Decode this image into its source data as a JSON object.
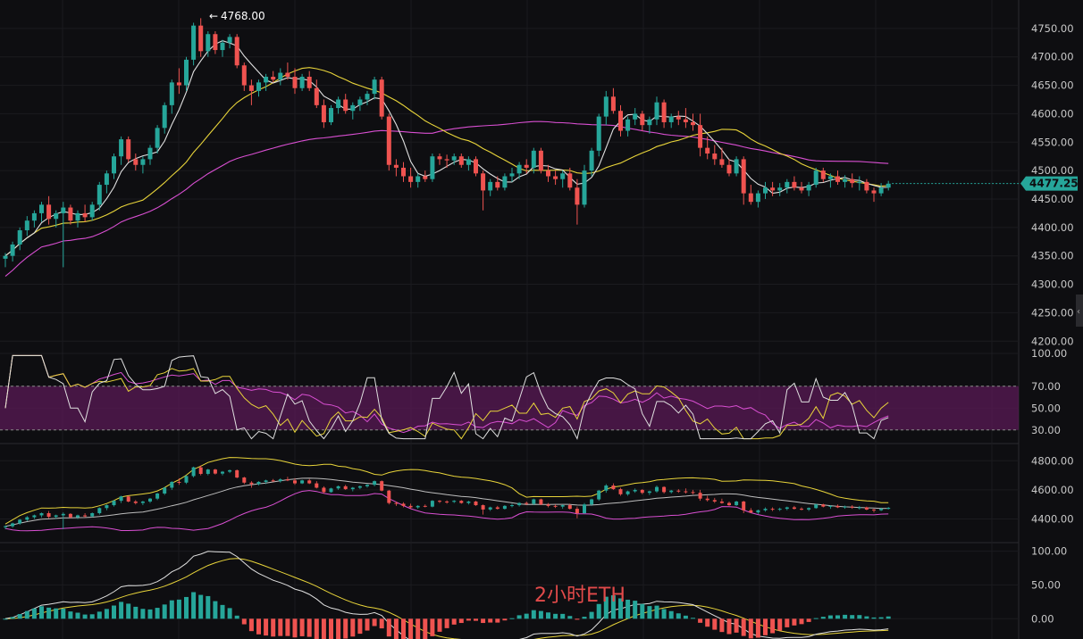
{
  "watermark": "2小时ETH",
  "colors": {
    "background": "#0e0e11",
    "up": "#26a69a",
    "down": "#ef5350",
    "ma_fast": "#e0e0e0",
    "ma_mid": "#e8d43a",
    "ma_slow": "#d94fd2",
    "rsi_band": "#5a1a55",
    "price_tag": "#26a69a"
  },
  "chart_data": [
    {
      "type": "candlestick",
      "panel": "price",
      "ylim": [
        4180,
        4800
      ],
      "y_ticks": [
        "4750.00",
        "4700.00",
        "4650.00",
        "4600.00",
        "4550.00",
        "4500.00",
        "4450.00",
        "4400.00",
        "4350.00",
        "4300.00",
        "4250.00",
        "4200.00"
      ],
      "current_price": "4477.25",
      "peak_label": "4768.00",
      "candles": [
        [
          4345,
          4355,
          4330,
          4350
        ],
        [
          4350,
          4375,
          4340,
          4370
        ],
        [
          4370,
          4400,
          4360,
          4395
        ],
        [
          4395,
          4420,
          4385,
          4412
        ],
        [
          4412,
          4430,
          4400,
          4425
        ],
        [
          4425,
          4445,
          4410,
          4440
        ],
        [
          4440,
          4455,
          4405,
          4415
        ],
        [
          4415,
          4430,
          4400,
          4425
        ],
        [
          4425,
          4445,
          4330,
          4435
        ],
        [
          4435,
          4440,
          4405,
          4412
        ],
        [
          4412,
          4430,
          4400,
          4425
        ],
        [
          4425,
          4440,
          4410,
          4418
        ],
        [
          4418,
          4445,
          4412,
          4440
        ],
        [
          4440,
          4480,
          4430,
          4475
        ],
        [
          4475,
          4500,
          4460,
          4495
        ],
        [
          4495,
          4530,
          4485,
          4525
        ],
        [
          4525,
          4560,
          4510,
          4555
        ],
        [
          4555,
          4560,
          4515,
          4520
        ],
        [
          4520,
          4530,
          4500,
          4510
        ],
        [
          4510,
          4525,
          4495,
          4520
        ],
        [
          4520,
          4545,
          4510,
          4540
        ],
        [
          4540,
          4580,
          4530,
          4575
        ],
        [
          4575,
          4620,
          4565,
          4615
        ],
        [
          4615,
          4660,
          4600,
          4655
        ],
        [
          4655,
          4680,
          4635,
          4650
        ],
        [
          4650,
          4700,
          4640,
          4695
        ],
        [
          4695,
          4760,
          4685,
          4755
        ],
        [
          4755,
          4768,
          4700,
          4710
        ],
        [
          4710,
          4745,
          4700,
          4740
        ],
        [
          4740,
          4745,
          4705,
          4712
        ],
        [
          4712,
          4730,
          4700,
          4725
        ],
        [
          4725,
          4740,
          4715,
          4735
        ],
        [
          4735,
          4740,
          4680,
          4685
        ],
        [
          4685,
          4690,
          4640,
          4650
        ],
        [
          4650,
          4660,
          4615,
          4640
        ],
        [
          4640,
          4660,
          4630,
          4655
        ],
        [
          4655,
          4670,
          4640,
          4665
        ],
        [
          4665,
          4675,
          4655,
          4660
        ],
        [
          4660,
          4680,
          4650,
          4672
        ],
        [
          4672,
          4690,
          4660,
          4665
        ],
        [
          4665,
          4680,
          4635,
          4645
        ],
        [
          4645,
          4670,
          4640,
          4665
        ],
        [
          4665,
          4675,
          4640,
          4645
        ],
        [
          4645,
          4660,
          4610,
          4615
        ],
        [
          4615,
          4625,
          4575,
          4585
        ],
        [
          4585,
          4615,
          4580,
          4610
        ],
        [
          4610,
          4630,
          4600,
          4625
        ],
        [
          4625,
          4635,
          4600,
          4605
        ],
        [
          4605,
          4620,
          4590,
          4615
        ],
        [
          4615,
          4630,
          4605,
          4625
        ],
        [
          4625,
          4640,
          4615,
          4635
        ],
        [
          4635,
          4665,
          4625,
          4660
        ],
        [
          4660,
          4665,
          4590,
          4595
        ],
        [
          4595,
          4600,
          4500,
          4510
        ],
        [
          4510,
          4520,
          4490,
          4505
        ],
        [
          4505,
          4515,
          4480,
          4490
        ],
        [
          4490,
          4505,
          4470,
          4480
        ],
        [
          4480,
          4495,
          4470,
          4490
        ],
        [
          4490,
          4500,
          4480,
          4485
        ],
        [
          4485,
          4530,
          4480,
          4525
        ],
        [
          4525,
          4530,
          4510,
          4520
        ],
        [
          4520,
          4528,
          4505,
          4518
        ],
        [
          4518,
          4530,
          4510,
          4525
        ],
        [
          4525,
          4530,
          4505,
          4510
        ],
        [
          4510,
          4525,
          4500,
          4520
        ],
        [
          4520,
          4525,
          4490,
          4495
        ],
        [
          4495,
          4500,
          4430,
          4465
        ],
        [
          4465,
          4485,
          4455,
          4480
        ],
        [
          4480,
          4490,
          4465,
          4470
        ],
        [
          4470,
          4495,
          4465,
          4490
        ],
        [
          4490,
          4505,
          4480,
          4495
        ],
        [
          4495,
          4515,
          4485,
          4510
        ],
        [
          4510,
          4520,
          4495,
          4505
        ],
        [
          4505,
          4540,
          4495,
          4535
        ],
        [
          4535,
          4540,
          4495,
          4500
        ],
        [
          4500,
          4510,
          4480,
          4490
        ],
        [
          4490,
          4500,
          4475,
          4485
        ],
        [
          4485,
          4500,
          4470,
          4495
        ],
        [
          4495,
          4505,
          4465,
          4470
        ],
        [
          4470,
          4485,
          4405,
          4440
        ],
        [
          4440,
          4510,
          4435,
          4500
        ],
        [
          4500,
          4540,
          4490,
          4535
        ],
        [
          4535,
          4600,
          4525,
          4595
        ],
        [
          4595,
          4640,
          4580,
          4630
        ],
        [
          4630,
          4645,
          4600,
          4605
        ],
        [
          4605,
          4615,
          4560,
          4570
        ],
        [
          4570,
          4595,
          4560,
          4590
        ],
        [
          4590,
          4610,
          4580,
          4600
        ],
        [
          4600,
          4605,
          4570,
          4580
        ],
        [
          4580,
          4595,
          4565,
          4590
        ],
        [
          4590,
          4630,
          4580,
          4620
        ],
        [
          4620,
          4625,
          4575,
          4585
        ],
        [
          4585,
          4600,
          4575,
          4595
        ],
        [
          4595,
          4605,
          4580,
          4590
        ],
        [
          4590,
          4610,
          4575,
          4585
        ],
        [
          4585,
          4600,
          4570,
          4580
        ],
        [
          4580,
          4600,
          4525,
          4540
        ],
        [
          4540,
          4560,
          4520,
          4530
        ],
        [
          4530,
          4545,
          4510,
          4520
        ],
        [
          4520,
          4540,
          4505,
          4510
        ],
        [
          4510,
          4520,
          4490,
          4495
        ],
        [
          4495,
          4525,
          4490,
          4520
        ],
        [
          4520,
          4525,
          4440,
          4460
        ],
        [
          4460,
          4475,
          4440,
          4445
        ],
        [
          4445,
          4465,
          4435,
          4460
        ],
        [
          4460,
          4480,
          4450,
          4470
        ],
        [
          4470,
          4480,
          4455,
          4465
        ],
        [
          4465,
          4478,
          4455,
          4470
        ],
        [
          4470,
          4485,
          4460,
          4480
        ],
        [
          4480,
          4490,
          4465,
          4470
        ],
        [
          4470,
          4480,
          4460,
          4465
        ],
        [
          4465,
          4480,
          4455,
          4475
        ],
        [
          4475,
          4505,
          4470,
          4500
        ],
        [
          4500,
          4505,
          4480,
          4485
        ],
        [
          4485,
          4495,
          4470,
          4490
        ],
        [
          4490,
          4500,
          4475,
          4480
        ],
        [
          4480,
          4492,
          4470,
          4485
        ],
        [
          4485,
          4495,
          4470,
          4478
        ],
        [
          4478,
          4490,
          4465,
          4480
        ],
        [
          4480,
          4485,
          4460,
          4465
        ],
        [
          4465,
          4470,
          4445,
          4460
        ],
        [
          4460,
          4478,
          4455,
          4470
        ],
        [
          4470,
          4482,
          4465,
          4477
        ]
      ]
    },
    {
      "type": "line",
      "panel": "rsi",
      "ylim": [
        20,
        100
      ],
      "y_ticks": [
        "100.00",
        "70.00",
        "50.00",
        "30.00"
      ],
      "band": [
        30,
        70
      ]
    },
    {
      "type": "line",
      "panel": "bollinger",
      "ylim": [
        4250,
        4900
      ],
      "y_ticks": [
        "4800.00",
        "4600.00",
        "4400.00"
      ]
    },
    {
      "type": "bar",
      "panel": "oscillator",
      "ylim": [
        -30,
        110
      ],
      "y_ticks": [
        "100.00",
        "50.00",
        "0.00"
      ]
    }
  ]
}
